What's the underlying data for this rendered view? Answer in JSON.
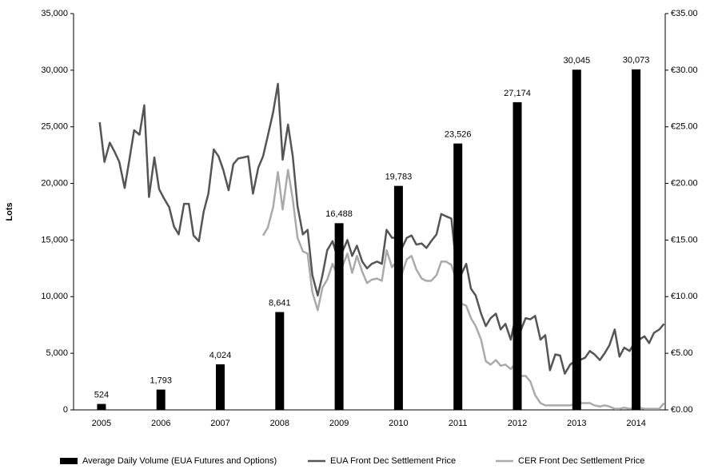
{
  "chart_data": {
    "type": "combo",
    "y_label": "Lots",
    "x": [
      2005,
      2006,
      2007,
      2008,
      2009,
      2010,
      2011,
      2012,
      2013,
      2014
    ],
    "xlim": [
      2004.53,
      2014.49
    ],
    "xticks": [
      2005,
      2006,
      2007,
      2008,
      2009,
      2010,
      2011,
      2012,
      2013,
      2014
    ],
    "ylim": [
      0,
      35000
    ],
    "yticks": [
      0,
      {
        "value": 5000,
        "label": "5,000"
      },
      {
        "value": 10000,
        "label": "10,000"
      },
      {
        "value": 15000,
        "label": "15,000"
      },
      {
        "value": 20000,
        "label": "20,000"
      },
      {
        "value": 25000,
        "label": "25,000"
      },
      {
        "value": 30000,
        "label": "30,000"
      },
      {
        "value": 35000,
        "label": "35,000"
      }
    ],
    "y2lim": [
      0,
      35
    ],
    "y2ticks": [
      {
        "value": 0,
        "label": "€0.00"
      },
      {
        "value": 5,
        "label": "€5.00"
      },
      {
        "value": 10,
        "label": "€10.00"
      },
      {
        "value": 15,
        "label": "€15.00"
      },
      {
        "value": 20,
        "label": "€20.00"
      },
      {
        "value": 25,
        "label": "€25.00"
      },
      {
        "value": 30,
        "label": "€30.00"
      },
      {
        "value": 35,
        "label": "€35.00"
      }
    ],
    "grid": false,
    "legend": "bottom",
    "series": [
      {
        "name": "Average Daily Volume (EUA Futures and Options)",
        "type": "bar",
        "color": "#000000",
        "values": [
          524,
          1793,
          4024,
          8641,
          16488,
          19783,
          23526,
          27174,
          30045,
          30073
        ],
        "value_labels": [
          "524",
          "1,793",
          "4,024",
          "8,641",
          "16,488",
          "19,783",
          "23,526",
          "27,174",
          "30,045",
          "30,073"
        ]
      },
      {
        "name": "EUA Front Dec Settlement Price",
        "type": "line",
        "color": "#555555",
        "axis": "y2",
        "x": [
          2004.97,
          2005.05,
          2005.14,
          2005.22,
          2005.3,
          2005.39,
          2005.47,
          2005.55,
          2005.64,
          2005.72,
          2005.8,
          2005.89,
          2005.97,
          2006.05,
          2006.14,
          2006.22,
          2006.3,
          2006.39,
          2006.47,
          2006.55,
          2006.64,
          2006.72,
          2006.8,
          2006.89,
          2006.97,
          2007.05,
          2007.14,
          2007.22,
          2007.3,
          2007.39,
          2007.47,
          2007.55,
          2007.64,
          2007.72,
          2007.8,
          2007.89,
          2007.97,
          2008.05,
          2008.14,
          2008.22,
          2008.3,
          2008.39,
          2008.47,
          2008.55,
          2008.64,
          2008.72,
          2008.8,
          2008.89,
          2008.97,
          2009.05,
          2009.14,
          2009.22,
          2009.3,
          2009.39,
          2009.47,
          2009.55,
          2009.64,
          2009.72,
          2009.8,
          2009.89,
          2009.97,
          2010.05,
          2010.14,
          2010.22,
          2010.3,
          2010.39,
          2010.47,
          2010.55,
          2010.64,
          2010.72,
          2010.8,
          2010.89,
          2010.97,
          2011.05,
          2011.14,
          2011.22,
          2011.3,
          2011.39,
          2011.47,
          2011.55,
          2011.64,
          2011.72,
          2011.8,
          2011.89,
          2011.97,
          2012.05,
          2012.14,
          2012.22,
          2012.3,
          2012.39,
          2012.47,
          2012.55,
          2012.64,
          2012.72,
          2012.8,
          2012.89,
          2012.97,
          2013.05,
          2013.14,
          2013.22,
          2013.3,
          2013.39,
          2013.47,
          2013.55,
          2013.64,
          2013.72,
          2013.8,
          2013.89,
          2013.97,
          2014.05,
          2014.14,
          2014.22,
          2014.3,
          2014.39,
          2014.47
        ],
        "values": [
          25.4,
          21.9,
          23.6,
          22.8,
          21.9,
          19.6,
          22.1,
          24.7,
          24.3,
          26.9,
          18.8,
          22.3,
          19.5,
          18.7,
          17.9,
          16.2,
          15.5,
          18.2,
          18.2,
          15.4,
          14.9,
          17.5,
          19.1,
          23.0,
          22.4,
          21.2,
          19.4,
          21.7,
          22.2,
          22.3,
          22.4,
          19.1,
          21.4,
          22.4,
          24.2,
          26.3,
          28.8,
          22.1,
          25.2,
          22.4,
          18.0,
          15.5,
          15.9,
          11.9,
          10.1,
          11.9,
          14.1,
          14.9,
          13.5,
          13.9,
          15.0,
          13.6,
          14.5,
          13.1,
          12.5,
          12.9,
          13.1,
          12.9,
          15.9,
          15.2,
          15.2,
          14.2,
          15.2,
          15.4,
          14.6,
          14.7,
          14.3,
          14.9,
          15.5,
          17.3,
          17.1,
          16.9,
          12.9,
          11.9,
          12.9,
          10.7,
          10.1,
          8.5,
          7.4,
          8.1,
          8.5,
          7.1,
          7.6,
          6.2,
          8.2,
          6.9,
          8.1,
          8.0,
          8.3,
          6.2,
          6.6,
          3.5,
          4.9,
          4.8,
          3.2,
          4.0,
          4.3,
          4.4,
          4.6,
          5.2,
          4.9,
          4.4,
          5.0,
          5.7,
          7.1,
          4.7,
          5.5,
          5.2,
          5.9,
          6.2,
          6.5,
          5.9,
          6.8,
          7.1,
          7.6
        ]
      },
      {
        "name": "CER Front Dec Settlement Price",
        "type": "line",
        "color": "#aaaaaa",
        "axis": "y2",
        "x": [
          2007.72,
          2007.8,
          2007.89,
          2007.97,
          2008.05,
          2008.14,
          2008.22,
          2008.3,
          2008.39,
          2008.47,
          2008.55,
          2008.64,
          2008.72,
          2008.8,
          2008.89,
          2008.97,
          2009.05,
          2009.14,
          2009.22,
          2009.3,
          2009.39,
          2009.47,
          2009.55,
          2009.64,
          2009.72,
          2009.8,
          2009.89,
          2009.97,
          2010.05,
          2010.14,
          2010.22,
          2010.3,
          2010.39,
          2010.47,
          2010.55,
          2010.64,
          2010.72,
          2010.8,
          2010.89,
          2010.97,
          2011.05,
          2011.14,
          2011.22,
          2011.3,
          2011.39,
          2011.47,
          2011.55,
          2011.64,
          2011.72,
          2011.8,
          2011.89,
          2011.97,
          2012.05,
          2012.14,
          2012.22,
          2012.3,
          2012.39,
          2012.47,
          2012.55,
          2012.64,
          2012.72,
          2012.8,
          2012.89,
          2012.97,
          2013.05,
          2013.14,
          2013.22,
          2013.3,
          2013.39,
          2013.47,
          2013.55,
          2013.64,
          2013.72,
          2013.8,
          2013.89,
          2013.97,
          2014.05,
          2014.14,
          2014.22,
          2014.3,
          2014.39,
          2014.47
        ],
        "values": [
          15.4,
          16.1,
          17.9,
          21.0,
          17.7,
          21.2,
          18.6,
          15.2,
          14.0,
          13.8,
          10.4,
          8.8,
          10.8,
          11.5,
          12.9,
          11.9,
          12.6,
          13.8,
          12.1,
          13.6,
          12.2,
          11.2,
          11.5,
          11.6,
          11.4,
          14.1,
          12.6,
          13.1,
          11.9,
          13.3,
          13.6,
          12.4,
          11.6,
          11.4,
          11.4,
          11.9,
          13.1,
          13.1,
          12.8,
          11.5,
          9.4,
          9.2,
          8.1,
          7.4,
          6.2,
          4.3,
          4.0,
          4.4,
          3.9,
          4.0,
          3.6,
          4.1,
          3.0,
          3.0,
          2.5,
          1.3,
          0.6,
          0.4,
          0.4,
          0.4,
          0.4,
          0.4,
          0.4,
          0.5,
          0.6,
          0.6,
          0.6,
          0.4,
          0.3,
          0.4,
          0.3,
          0.1,
          0.1,
          0.2,
          0.1,
          0.2,
          0.2,
          0.1,
          0.1,
          0.1,
          0.1,
          0.6
        ]
      }
    ]
  }
}
